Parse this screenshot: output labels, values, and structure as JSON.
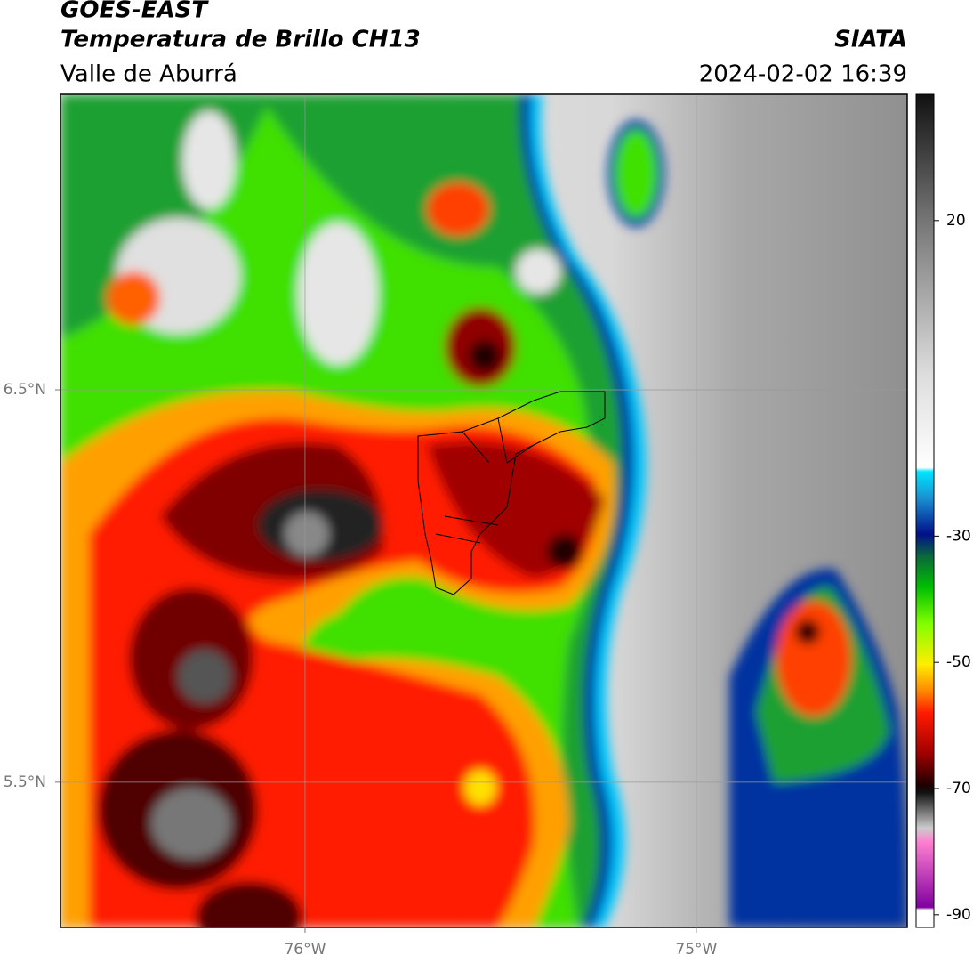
{
  "header": {
    "title": "GOES-EAST",
    "subtitle": "Temperatura de Brillo CH13",
    "region": "Valle de Aburrá",
    "source": "SIATA",
    "datetime": "2024-02-02 16:39"
  },
  "map": {
    "xlim": [
      -76.625,
      -74.461
    ],
    "ylim": [
      5.13,
      7.253
    ],
    "xticks": [
      {
        "value": -76,
        "label": "76°W"
      },
      {
        "value": -75,
        "label": "75°W"
      }
    ],
    "yticks": [
      {
        "value": 6.5,
        "label": "6.5°N"
      },
      {
        "value": 5.5,
        "label": "5.5°N"
      }
    ],
    "grid": true
  },
  "colorbar": {
    "lim": [
      -92,
      40
    ],
    "ticks": [
      20,
      -30,
      -50,
      -70,
      -90
    ]
  }
}
